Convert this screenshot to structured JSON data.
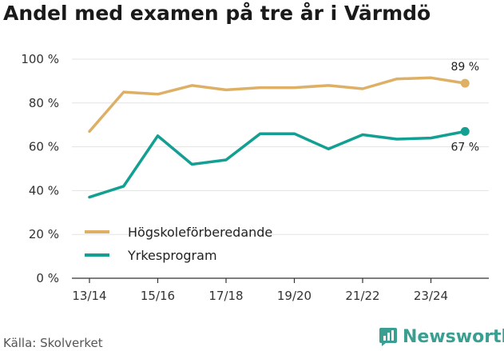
{
  "chart_data": {
    "type": "line",
    "title": "Andel med examen på tre år i Värmdö",
    "xlabel": "",
    "ylabel": "",
    "ylim": [
      0,
      100
    ],
    "y_ticks": [
      "0 %",
      "20 %",
      "40 %",
      "60 %",
      "80 %",
      "100 %"
    ],
    "y_tick_values": [
      0,
      20,
      40,
      60,
      80,
      100
    ],
    "categories": [
      "13/14",
      "14/15",
      "15/16",
      "16/17",
      "17/18",
      "18/19",
      "19/20",
      "20/21",
      "21/22",
      "22/23",
      "23/24",
      "24/25"
    ],
    "x_tick_labels": [
      "13/14",
      "15/16",
      "17/18",
      "19/20",
      "21/22",
      "23/24"
    ],
    "series": [
      {
        "name": "Högskoleförberedande",
        "color": "#deb066",
        "values": [
          67,
          85,
          84,
          88,
          86,
          87,
          87,
          88,
          86.5,
          91,
          91.5,
          89
        ],
        "end_label": "89 %"
      },
      {
        "name": "Yrkesprogram",
        "color": "#139f91",
        "values": [
          37,
          42,
          65,
          52,
          54,
          66,
          66,
          59,
          65.5,
          63.5,
          64,
          67
        ],
        "end_label": "67 %"
      }
    ],
    "legend_position": "lower-left",
    "grid": true
  },
  "footer": {
    "source": "Källa: Skolverket",
    "brand": "Newsworthy"
  }
}
